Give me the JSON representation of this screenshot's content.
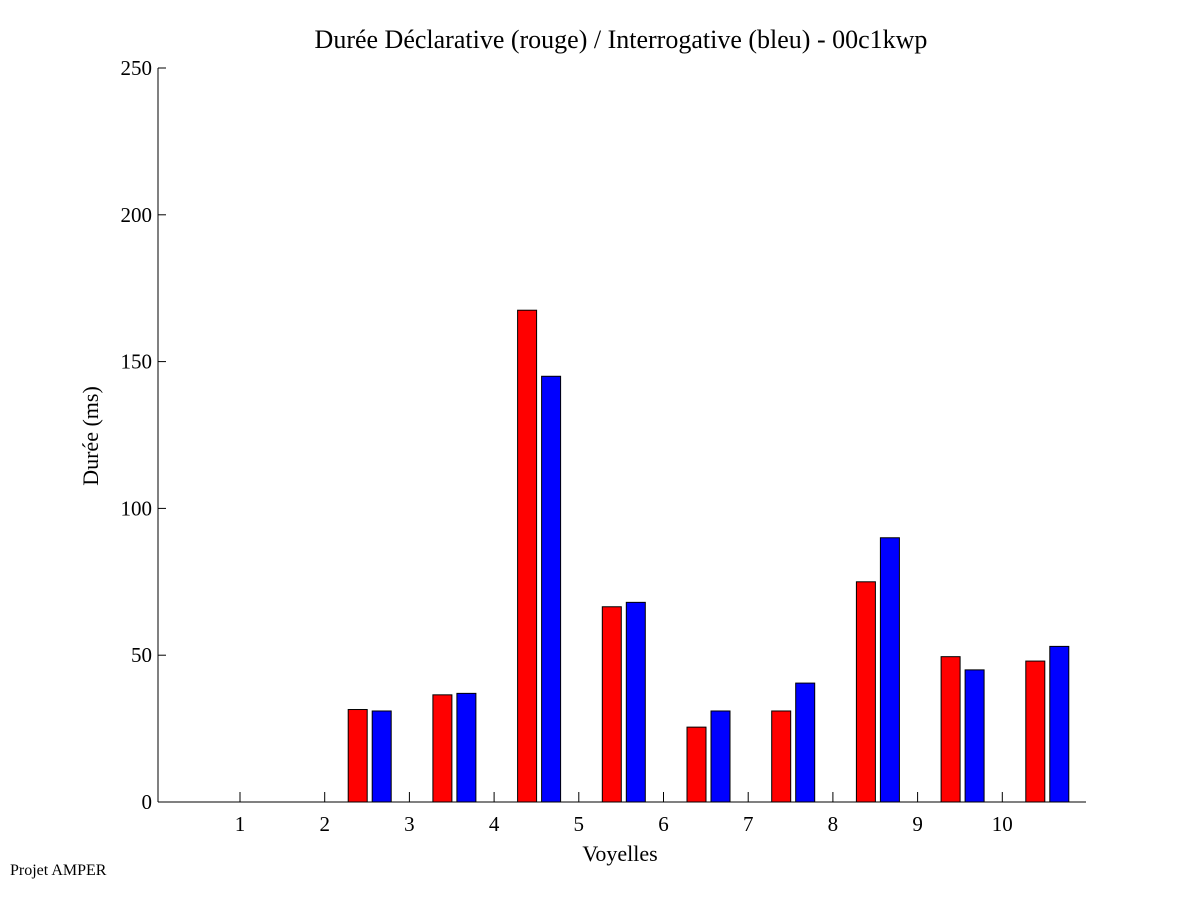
{
  "chart_data": {
    "type": "bar",
    "title": "Durée Déclarative (rouge) / Interrogative (bleu) - 00c1kwp",
    "xlabel": "Voyelles",
    "ylabel": "Durée (ms)",
    "categories": [
      "1",
      "2",
      "3",
      "4",
      "5",
      "6",
      "7",
      "8",
      "9",
      "10"
    ],
    "ylim": [
      0,
      250
    ],
    "yticks": [
      "0",
      "50",
      "100",
      "150",
      "200",
      "250"
    ],
    "grid": false,
    "legend": "none",
    "series": [
      {
        "color": "#ff0000",
        "values": [
          0,
          31.5,
          36.5,
          167.5,
          66.5,
          25.5,
          31,
          75,
          49.5,
          48
        ]
      },
      {
        "color": "#0000ff",
        "values": [
          0,
          31,
          37,
          145,
          68,
          31,
          40.5,
          90,
          45,
          53
        ]
      }
    ]
  },
  "footer": {
    "label": "Projet AMPER"
  }
}
